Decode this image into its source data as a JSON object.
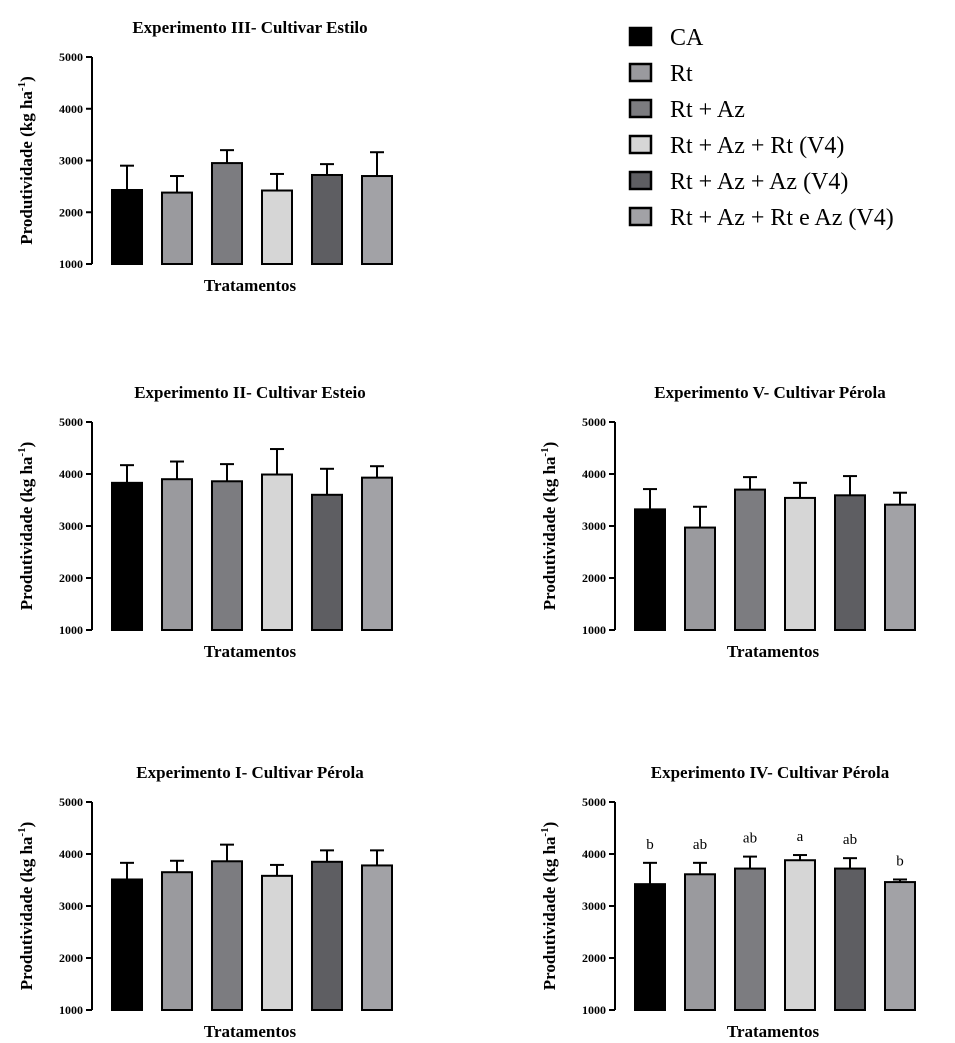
{
  "legend": {
    "items": [
      {
        "label": "CA",
        "color": "#000000"
      },
      {
        "label": "Rt",
        "color": "#9a9a9e"
      },
      {
        "label": "Rt + Az",
        "color": "#7c7c80"
      },
      {
        "label": "Rt + Az + Rt (V4)",
        "color": "#d6d6d6"
      },
      {
        "label": "Rt + Az + Az (V4)",
        "color": "#5e5e62"
      },
      {
        "label": "Rt + Az + Rt e Az (V4)",
        "color": "#a2a2a6"
      }
    ]
  },
  "chart_data": [
    {
      "type": "bar",
      "title": "Experimento III- Cultivar Estilo",
      "xlabel": "Tratamentos",
      "ylabel_main": "Produtividade (kg ha",
      "ylabel_sup": "-1",
      "ylabel_close": ")",
      "ylim": [
        1000,
        5000
      ],
      "yticks": [
        "1000",
        "2000",
        "3000",
        "4000",
        "5000"
      ],
      "values": [
        2430,
        2380,
        2950,
        2420,
        2720,
        2700
      ],
      "errors": [
        470,
        320,
        250,
        320,
        210,
        460
      ],
      "letters": []
    },
    {
      "type": "bar",
      "title": "Experimento II- Cultivar Esteio",
      "xlabel": "Tratamentos",
      "ylabel_main": "Produtividade (kg ha",
      "ylabel_sup": "-1",
      "ylabel_close": ")",
      "ylim": [
        1000,
        5000
      ],
      "yticks": [
        "1000",
        "2000",
        "3000",
        "4000",
        "5000"
      ],
      "values": [
        3830,
        3900,
        3860,
        3990,
        3600,
        3930
      ],
      "errors": [
        340,
        340,
        330,
        490,
        500,
        220
      ],
      "letters": []
    },
    {
      "type": "bar",
      "title": "Experimento V- Cultivar Pérola",
      "xlabel": "Tratamentos",
      "ylabel_main": "Produtividade (kg ha",
      "ylabel_sup": "-1",
      "ylabel_close": ")",
      "ylim": [
        1000,
        5000
      ],
      "yticks": [
        "1000",
        "2000",
        "3000",
        "4000",
        "5000"
      ],
      "values": [
        3320,
        2970,
        3700,
        3540,
        3590,
        3410
      ],
      "errors": [
        390,
        400,
        240,
        290,
        370,
        230
      ],
      "letters": []
    },
    {
      "type": "bar",
      "title": "Experimento I- Cultivar Pérola",
      "xlabel": "Tratamentos",
      "ylabel_main": "Produtividade (kg ha",
      "ylabel_sup": "-1",
      "ylabel_close": ")",
      "ylim": [
        1000,
        5000
      ],
      "yticks": [
        "1000",
        "2000",
        "3000",
        "4000",
        "5000"
      ],
      "values": [
        3510,
        3650,
        3860,
        3580,
        3850,
        3780
      ],
      "errors": [
        320,
        220,
        320,
        210,
        220,
        290
      ],
      "letters": []
    },
    {
      "type": "bar",
      "title": "Experimento IV- Cultivar Pérola",
      "xlabel": "Tratamentos",
      "ylabel_main": "Produtividade (kg ha",
      "ylabel_sup": "-1",
      "ylabel_close": ")",
      "ylim": [
        1000,
        5000
      ],
      "yticks": [
        "1000",
        "2000",
        "3000",
        "4000",
        "5000"
      ],
      "values": [
        3420,
        3610,
        3720,
        3880,
        3720,
        3460
      ],
      "errors": [
        410,
        220,
        230,
        100,
        200,
        50
      ],
      "letters": [
        "b",
        "ab",
        "ab",
        "a",
        "ab",
        "b"
      ]
    }
  ]
}
